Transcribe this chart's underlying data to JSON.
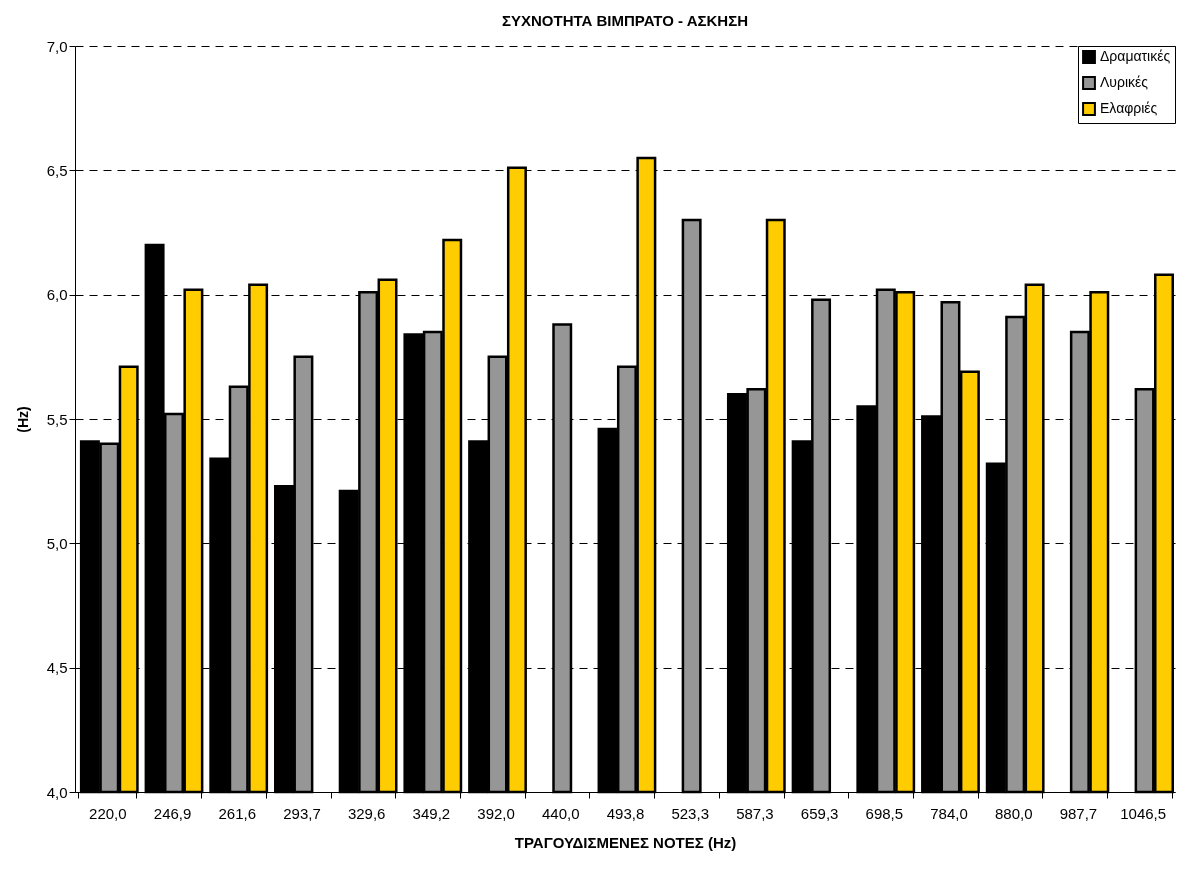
{
  "chart_data": {
    "type": "bar",
    "title": "ΣΥΧΝΟΤΗΤΑ ΒΙΜΠΡΑΤΟ - ΑΣΚΗΣΗ",
    "xlabel": "ΤΡΑΓΟΥΔΙΣΜΕΝΕΣ ΝΟΤΕΣ (Hz)",
    "ylabel": "(Hz)",
    "categories": [
      "220,0",
      "246,9",
      "261,6",
      "293,7",
      "329,6",
      "349,2",
      "392,0",
      "440,0",
      "493,8",
      "523,3",
      "587,3",
      "659,3",
      "698,5",
      "784,0",
      "880,0",
      "987,7",
      "1046,5"
    ],
    "series": [
      {
        "name": "Δραματικές",
        "color": "#000000",
        "values": [
          5.41,
          6.2,
          5.34,
          5.23,
          5.21,
          5.84,
          5.41,
          null,
          5.46,
          null,
          5.6,
          5.41,
          5.55,
          5.51,
          5.32,
          null,
          null
        ]
      },
      {
        "name": "Λυρικές",
        "color": "#969696",
        "values": [
          5.4,
          5.52,
          5.63,
          5.75,
          6.01,
          5.85,
          5.75,
          5.88,
          5.71,
          6.3,
          5.62,
          5.98,
          6.02,
          5.97,
          5.91,
          5.85,
          5.62
        ]
      },
      {
        "name": "Ελαφριές",
        "color": "#ffcc00",
        "values": [
          5.71,
          6.02,
          6.04,
          null,
          6.06,
          6.22,
          6.51,
          null,
          6.55,
          null,
          6.3,
          null,
          6.01,
          5.69,
          6.04,
          6.01,
          6.08
        ]
      }
    ],
    "ylim": [
      4,
      7
    ],
    "yticks": [
      {
        "value": 4,
        "label": "4,0"
      },
      {
        "value": 4.5,
        "label": "4,5"
      },
      {
        "value": 5,
        "label": "5,0"
      },
      {
        "value": 5.5,
        "label": "5,5"
      },
      {
        "value": 6,
        "label": "6,0"
      },
      {
        "value": 6.5,
        "label": "6,5"
      },
      {
        "value": 7,
        "label": "7,0"
      }
    ],
    "grid": "y",
    "legend": "top right"
  }
}
